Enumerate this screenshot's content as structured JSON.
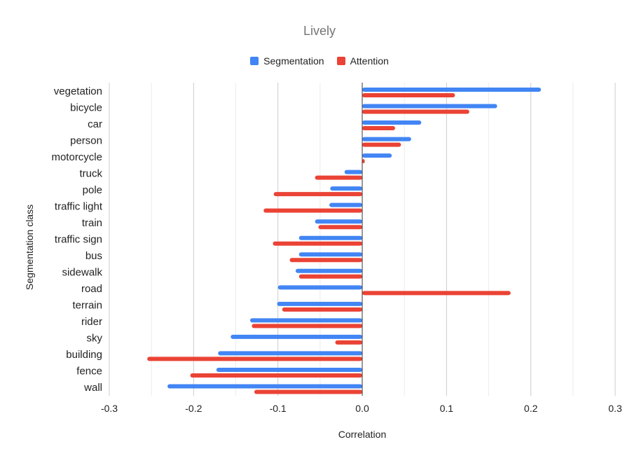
{
  "chart_data": {
    "type": "bar",
    "orientation": "horizontal",
    "title": "Lively",
    "xlabel": "Correlation",
    "ylabel": "Segmentation class",
    "xlim": [
      -0.3,
      0.3
    ],
    "x_ticks": [
      "-0.3",
      "-0.2",
      "-0.1",
      "0.0",
      "0.1",
      "0.2",
      "0.3"
    ],
    "x_tick_values": [
      -0.3,
      -0.2,
      -0.1,
      0.0,
      0.1,
      0.2,
      0.3
    ],
    "legend_position": "top",
    "grid": true,
    "categories": [
      "vegetation",
      "bicycle",
      "car",
      "person",
      "motorcycle",
      "truck",
      "pole",
      "traffic light",
      "train",
      "traffic sign",
      "bus",
      "sidewalk",
      "road",
      "terrain",
      "rider",
      "sky",
      "building",
      "fence",
      "wall"
    ],
    "series": [
      {
        "name": "Segmentation",
        "color": "#4285f4",
        "values": [
          0.212,
          0.16,
          0.07,
          0.058,
          0.035,
          -0.021,
          -0.038,
          -0.039,
          -0.056,
          -0.075,
          -0.075,
          -0.079,
          -0.1,
          -0.101,
          -0.133,
          -0.156,
          -0.171,
          -0.173,
          -0.231
        ]
      },
      {
        "name": "Attention",
        "color": "#ea4335",
        "values": [
          0.11,
          0.127,
          0.039,
          0.046,
          0.003,
          -0.056,
          -0.105,
          -0.117,
          -0.052,
          -0.106,
          -0.086,
          -0.075,
          0.176,
          -0.095,
          -0.131,
          -0.032,
          -0.255,
          -0.204,
          -0.128
        ]
      }
    ]
  }
}
